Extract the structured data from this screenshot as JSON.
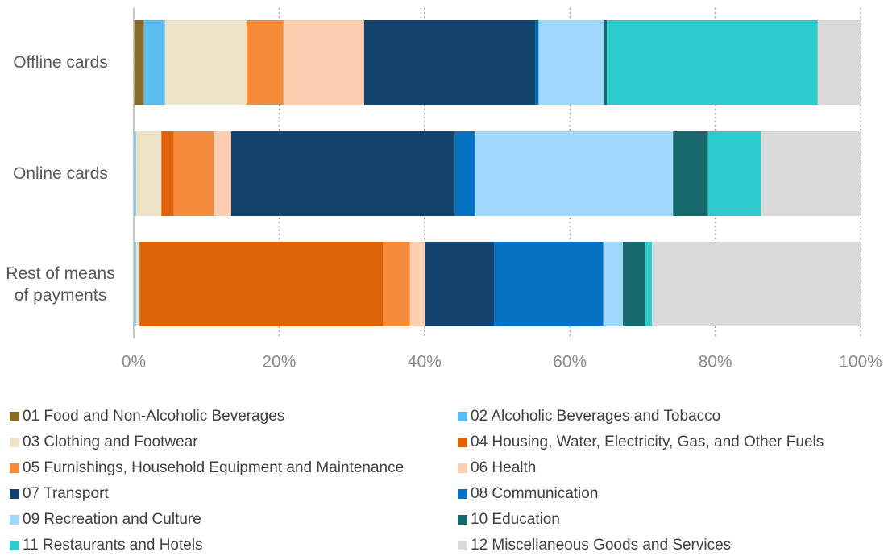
{
  "chart_data": {
    "type": "stacked_barh",
    "categories": [
      "Offline cards",
      "Online cards",
      "Rest of means of payments"
    ],
    "series": [
      {
        "name": "01 Food and Non-Alcoholic Beverages",
        "color": "#876b26",
        "values": [
          1.4,
          0,
          0
        ]
      },
      {
        "name": "02 Alcoholic Beverages and Tobacco",
        "color": "#5bbcf0",
        "values": [
          2.9,
          0.3,
          0.3
        ]
      },
      {
        "name": "03 Clothing and Footwear",
        "color": "#ede3c8",
        "values": [
          11.2,
          3.5,
          0.5
        ]
      },
      {
        "name": "04 Housing, Water, Electricity, Gas, and Other Fuels",
        "color": "#dd620a",
        "values": [
          0,
          1.7,
          33.5
        ]
      },
      {
        "name": "05 Furnishings, Household Equipment and Maintenance",
        "color": "#f68b3c",
        "values": [
          5.1,
          5.5,
          3.7
        ]
      },
      {
        "name": "06 Health",
        "color": "#fdcdb0",
        "values": [
          11.1,
          2.4,
          2.1
        ]
      },
      {
        "name": "07 Transport",
        "color": "#12446e",
        "values": [
          23.6,
          30.8,
          9.5
        ]
      },
      {
        "name": "08 Communication",
        "color": "#0672c2",
        "values": [
          0.4,
          2.8,
          15.0
        ]
      },
      {
        "name": "09 Recreation and Culture",
        "color": "#9fd8fb",
        "values": [
          9.0,
          27.2,
          2.7
        ]
      },
      {
        "name": "10 Education",
        "color": "#17686a",
        "values": [
          0.4,
          4.8,
          3.1
        ]
      },
      {
        "name": "11 Restaurants and Hotels",
        "color": "#2dcbcb",
        "values": [
          29.0,
          7.3,
          0.9
        ]
      },
      {
        "name": "12 Miscellaneous Goods and Services",
        "color": "#d9d9d9",
        "values": [
          5.9,
          13.7,
          28.7
        ]
      }
    ],
    "xlim": [
      0,
      100
    ],
    "xticks": [
      {
        "value": 0,
        "label": "0%"
      },
      {
        "value": 20,
        "label": "20%"
      },
      {
        "value": 40,
        "label": "40%"
      },
      {
        "value": 60,
        "label": "60%"
      },
      {
        "value": 80,
        "label": "80%"
      },
      {
        "value": 100,
        "label": "100%"
      }
    ],
    "grid": true
  }
}
